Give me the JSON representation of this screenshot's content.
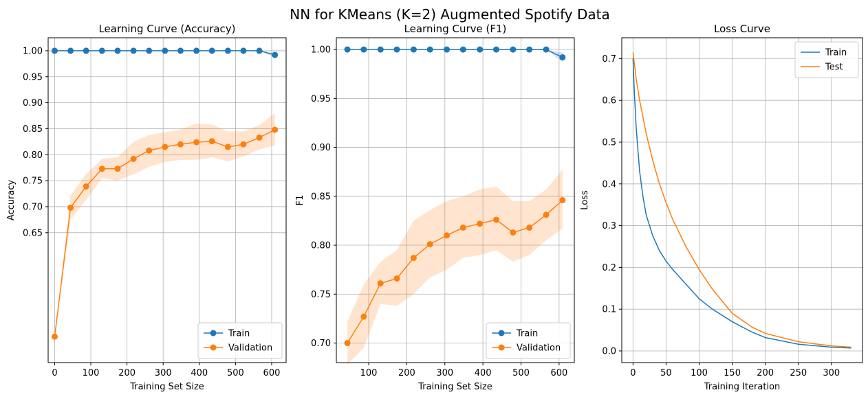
{
  "figure": {
    "suptitle": "NN for KMeans (K=2) Augmented Spotify Data"
  },
  "chart_data": [
    {
      "type": "line",
      "title": "Learning Curve (Accuracy)",
      "xlabel": "Training Set Size",
      "ylabel": "Accuracy",
      "xlim": [
        -18,
        640
      ],
      "ylim": [
        0.4,
        1.025
      ],
      "xticks": [
        0,
        100,
        200,
        300,
        400,
        500,
        600
      ],
      "yticks": [
        0.65,
        0.7,
        0.75,
        0.8,
        0.85,
        0.9,
        0.95,
        1.0
      ],
      "yticklabels": [
        "0.65",
        "0.70",
        "0.75",
        "0.80",
        "0.85",
        "0.90",
        "0.95",
        "1.00"
      ],
      "grid": true,
      "legend_loc": "lower-right",
      "series": [
        {
          "name": "Train",
          "color": "#1f77b4",
          "marker": true,
          "x": [
            0,
            44,
            87,
            131,
            174,
            218,
            261,
            305,
            348,
            392,
            435,
            479,
            522,
            566,
            609
          ],
          "y": [
            1.0,
            1.0,
            1.0,
            1.0,
            1.0,
            1.0,
            1.0,
            1.0,
            1.0,
            1.0,
            1.0,
            1.0,
            1.0,
            1.0,
            0.992
          ],
          "band_lower": [
            1.0,
            1.0,
            1.0,
            1.0,
            1.0,
            1.0,
            1.0,
            1.0,
            1.0,
            1.0,
            1.0,
            1.0,
            1.0,
            1.0,
            0.988
          ],
          "band_upper": [
            1.0,
            1.0,
            1.0,
            1.0,
            1.0,
            1.0,
            1.0,
            1.0,
            1.0,
            1.0,
            1.0,
            1.0,
            1.0,
            1.0,
            0.996
          ]
        },
        {
          "name": "Validation",
          "color": "#ff7f0e",
          "marker": true,
          "x": [
            0,
            44,
            87,
            131,
            174,
            218,
            261,
            305,
            348,
            392,
            435,
            479,
            522,
            566,
            609
          ],
          "y": [
            0.45,
            0.698,
            0.739,
            0.773,
            0.773,
            0.792,
            0.808,
            0.815,
            0.82,
            0.824,
            0.826,
            0.815,
            0.82,
            0.833,
            0.848
          ],
          "band_lower": [
            0.45,
            0.675,
            0.713,
            0.755,
            0.75,
            0.762,
            0.777,
            0.786,
            0.79,
            0.79,
            0.795,
            0.787,
            0.797,
            0.81,
            0.818
          ],
          "band_upper": [
            0.45,
            0.722,
            0.763,
            0.792,
            0.795,
            0.825,
            0.838,
            0.843,
            0.849,
            0.86,
            0.858,
            0.845,
            0.845,
            0.857,
            0.88
          ]
        }
      ]
    },
    {
      "type": "line",
      "title": "Learning Curve (F1)",
      "xlabel": "Training Set Size",
      "ylabel": "F1",
      "xlim": [
        15,
        640
      ],
      "ylim": [
        0.68,
        1.012
      ],
      "xticks": [
        100,
        200,
        300,
        400,
        500,
        600
      ],
      "yticks": [
        0.7,
        0.75,
        0.8,
        0.85,
        0.9,
        0.95,
        1.0
      ],
      "yticklabels": [
        "0.70",
        "0.75",
        "0.80",
        "0.85",
        "0.90",
        "0.95",
        "1.00"
      ],
      "grid": true,
      "legend_loc": "lower-right",
      "series": [
        {
          "name": "Train",
          "color": "#1f77b4",
          "marker": true,
          "x": [
            44,
            87,
            131,
            174,
            218,
            261,
            305,
            348,
            392,
            435,
            479,
            522,
            566,
            609
          ],
          "y": [
            1.0,
            1.0,
            1.0,
            1.0,
            1.0,
            1.0,
            1.0,
            1.0,
            1.0,
            1.0,
            1.0,
            1.0,
            1.0,
            0.992
          ],
          "band_lower": [
            1.0,
            1.0,
            1.0,
            1.0,
            1.0,
            1.0,
            1.0,
            1.0,
            1.0,
            1.0,
            1.0,
            1.0,
            1.0,
            0.987
          ],
          "band_upper": [
            1.0,
            1.0,
            1.0,
            1.0,
            1.0,
            1.0,
            1.0,
            1.0,
            1.0,
            1.0,
            1.0,
            1.0,
            1.0,
            0.997
          ]
        },
        {
          "name": "Validation",
          "color": "#ff7f0e",
          "marker": true,
          "x": [
            44,
            87,
            131,
            174,
            218,
            261,
            305,
            348,
            392,
            435,
            479,
            522,
            566,
            609
          ],
          "y": [
            0.7,
            0.727,
            0.761,
            0.766,
            0.787,
            0.801,
            0.81,
            0.818,
            0.822,
            0.826,
            0.813,
            0.818,
            0.831,
            0.846
          ],
          "band_lower": [
            0.678,
            0.695,
            0.74,
            0.738,
            0.75,
            0.767,
            0.775,
            0.787,
            0.79,
            0.795,
            0.783,
            0.79,
            0.805,
            0.817
          ],
          "band_upper": [
            0.722,
            0.76,
            0.783,
            0.795,
            0.825,
            0.836,
            0.845,
            0.85,
            0.857,
            0.86,
            0.845,
            0.845,
            0.857,
            0.877
          ]
        }
      ]
    },
    {
      "type": "line",
      "title": "Loss Curve",
      "xlabel": "Training Iteration",
      "ylabel": "Loss",
      "xlim": [
        -17,
        347
      ],
      "ylim": [
        -0.028,
        0.75
      ],
      "xticks": [
        0,
        50,
        100,
        150,
        200,
        250,
        300
      ],
      "yticks": [
        0.0,
        0.1,
        0.2,
        0.3,
        0.4,
        0.5,
        0.6,
        0.7
      ],
      "yticklabels": [
        "0.0",
        "0.1",
        "0.2",
        "0.3",
        "0.4",
        "0.5",
        "0.6",
        "0.7"
      ],
      "grid": true,
      "legend_loc": "upper-right",
      "series": [
        {
          "name": "Train",
          "color": "#1f77b4",
          "marker": false,
          "x": [
            0,
            2,
            5,
            10,
            15,
            20,
            30,
            40,
            50,
            60,
            80,
            100,
            120,
            150,
            180,
            200,
            250,
            300,
            330
          ],
          "y": [
            0.7,
            0.62,
            0.53,
            0.43,
            0.37,
            0.325,
            0.275,
            0.24,
            0.215,
            0.195,
            0.16,
            0.125,
            0.1,
            0.07,
            0.045,
            0.032,
            0.016,
            0.009,
            0.007
          ]
        },
        {
          "name": "Test",
          "color": "#ff7f0e",
          "marker": false,
          "x": [
            0,
            5,
            10,
            20,
            30,
            40,
            50,
            60,
            80,
            100,
            120,
            150,
            180,
            200,
            250,
            300,
            330
          ],
          "y": [
            0.715,
            0.65,
            0.6,
            0.52,
            0.455,
            0.4,
            0.355,
            0.315,
            0.25,
            0.195,
            0.148,
            0.09,
            0.057,
            0.042,
            0.022,
            0.012,
            0.009
          ]
        }
      ]
    }
  ]
}
